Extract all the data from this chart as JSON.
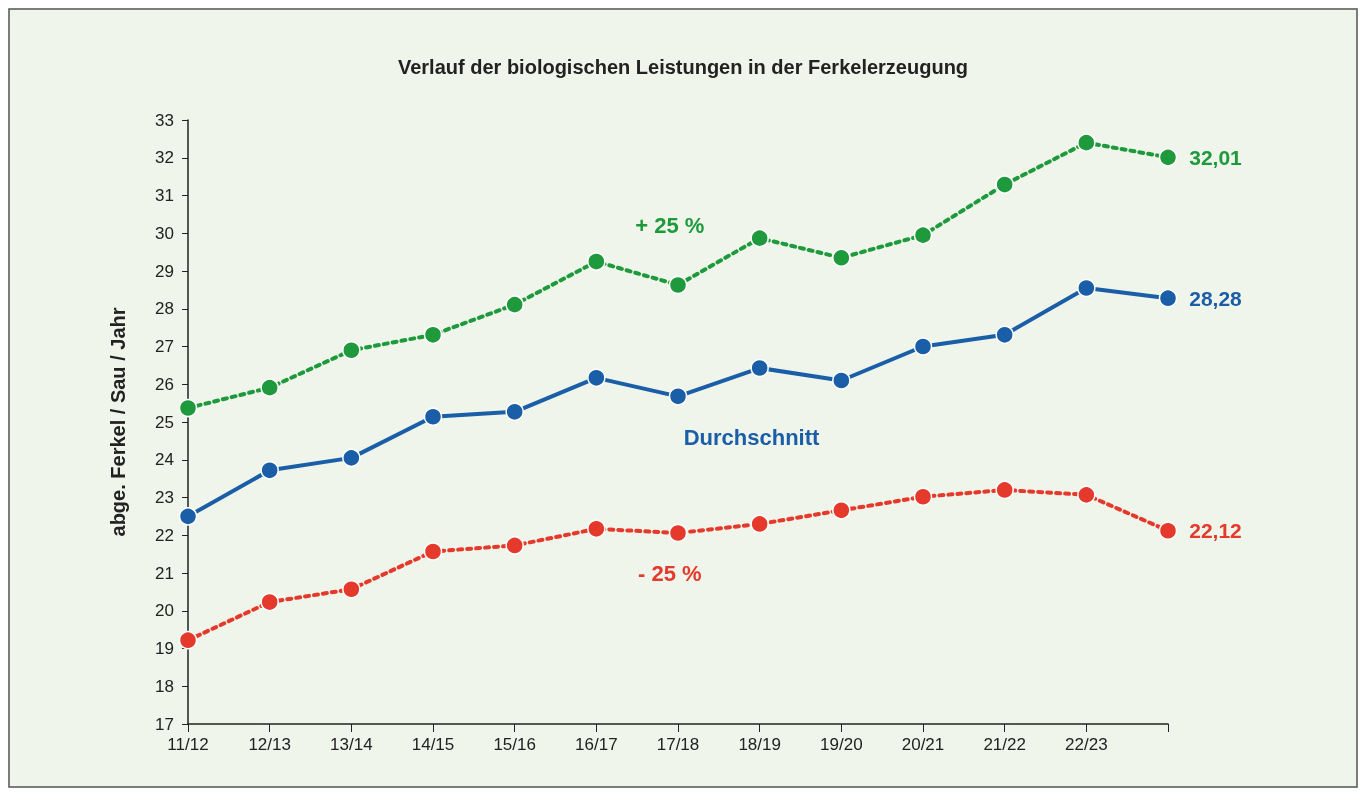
{
  "chart_data": {
    "type": "line",
    "title": "Verlauf der biologischen Leistungen in der Ferkelerzeugung",
    "ylabel": "abge. Ferkel / Sau / Jahr",
    "categories": [
      "11/12",
      "12/13",
      "13/14",
      "14/15",
      "15/16",
      "16/17",
      "17/18",
      "18/19",
      "19/20",
      "20/21",
      "21/22",
      "22/23",
      null
    ],
    "series": [
      {
        "name": "+ 25 %",
        "color": "#1e9a3c",
        "line_style": "dotted",
        "values": [
          25.37,
          25.91,
          26.9,
          27.31,
          28.11,
          29.25,
          28.63,
          29.87,
          29.35,
          29.95,
          31.29,
          32.4,
          32.01
        ],
        "value_labels": [
          null,
          null,
          null,
          null,
          null,
          null,
          null,
          null,
          null,
          null,
          null,
          null,
          "32,01"
        ]
      },
      {
        "name": "Durchschnitt",
        "color": "#1a5ea8",
        "line_style": "solid",
        "values": [
          22.5,
          23.72,
          24.05,
          25.14,
          25.27,
          26.17,
          25.68,
          26.43,
          26.1,
          27.0,
          27.31,
          28.55,
          28.28
        ],
        "value_labels": [
          null,
          null,
          null,
          null,
          null,
          null,
          null,
          null,
          null,
          null,
          null,
          null,
          "28,28"
        ]
      },
      {
        "name": "- 25 %",
        "color": "#e5392b",
        "line_style": "dotted",
        "values": [
          19.22,
          20.23,
          20.57,
          21.57,
          21.73,
          22.17,
          22.06,
          22.3,
          22.66,
          23.02,
          23.2,
          23.07,
          22.12
        ],
        "value_labels": [
          null,
          null,
          null,
          null,
          null,
          null,
          null,
          null,
          null,
          null,
          null,
          null,
          "22,12"
        ]
      }
    ],
    "ylim": [
      17,
      33
    ],
    "yticks": [
      17,
      18,
      19,
      20,
      21,
      22,
      23,
      24,
      25,
      26,
      27,
      28,
      29,
      30,
      31,
      32,
      33
    ],
    "grid": false,
    "legend": false,
    "marker": "circle"
  }
}
